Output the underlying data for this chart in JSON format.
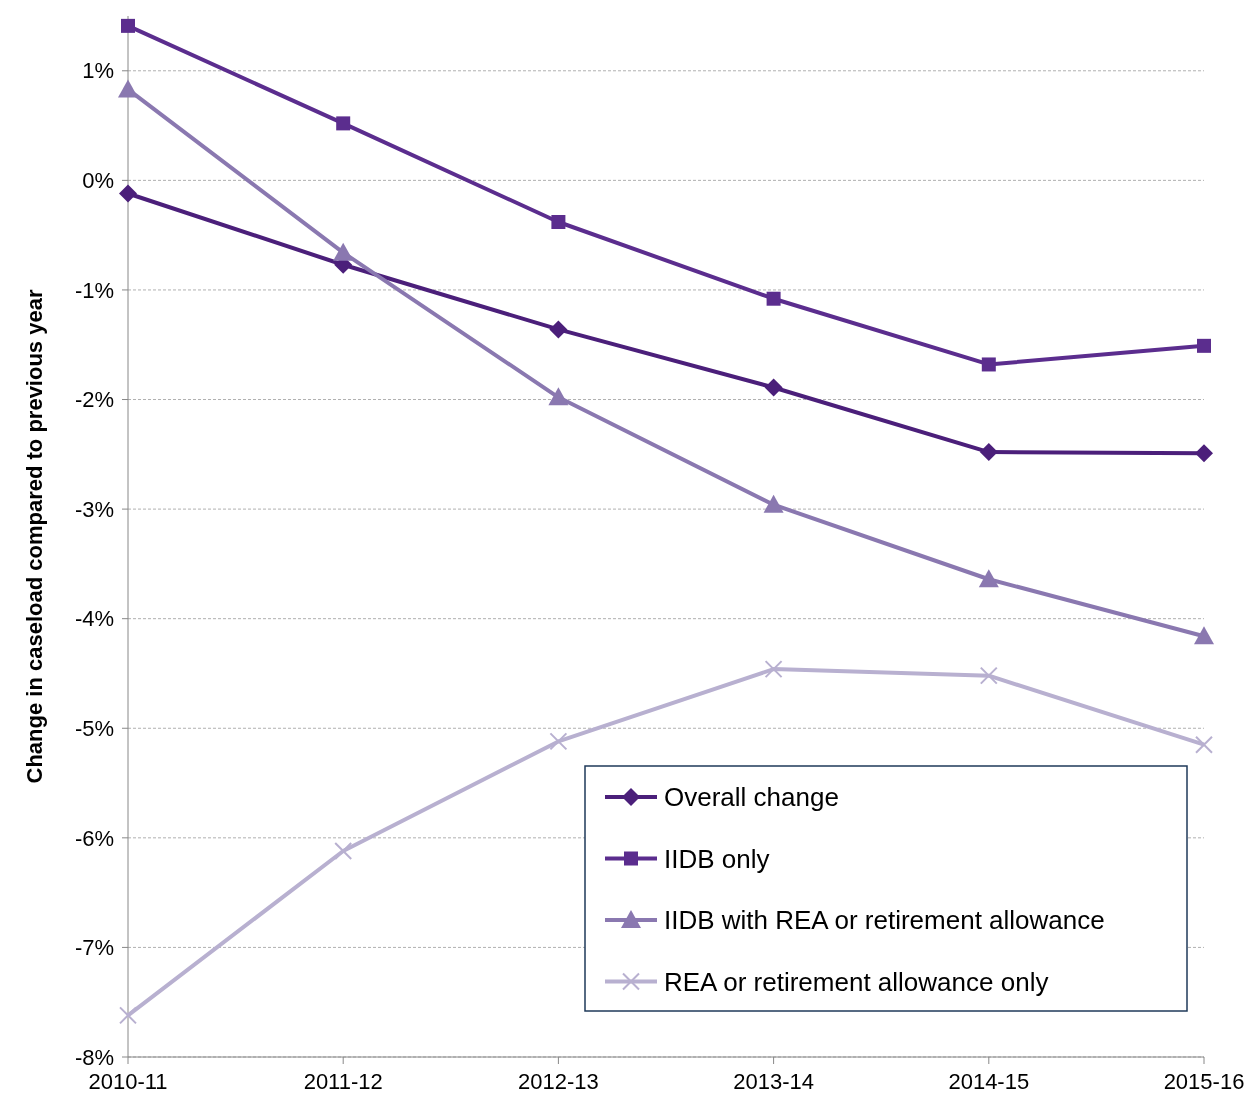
{
  "chart_data": {
    "type": "line",
    "ylabel": "Change in caseload compared to previous year",
    "categories": [
      "2010-11",
      "2011-12",
      "2012-13",
      "2013-14",
      "2014-15",
      "2015-16"
    ],
    "series": [
      {
        "name": "Overall change",
        "color": "#4b1f7a",
        "marker": "diamond",
        "values": [
          -0.12,
          -0.77,
          -1.36,
          -1.89,
          -2.48,
          -2.49
        ]
      },
      {
        "name": "IIDB only",
        "color": "#5b2d8e",
        "marker": "square",
        "values": [
          1.41,
          0.52,
          -0.38,
          -1.08,
          -1.68,
          -1.51
        ]
      },
      {
        "name": "IIDB with REA or retirement allowance",
        "color": "#8a78b0",
        "marker": "triangle",
        "values": [
          0.83,
          -0.66,
          -1.98,
          -2.96,
          -3.64,
          -4.16
        ]
      },
      {
        "name": "REA or retirement allowance only",
        "color": "#b8b0d0",
        "marker": "cross",
        "values": [
          -7.62,
          -6.12,
          -5.12,
          -4.46,
          -4.52,
          -5.15
        ]
      }
    ],
    "ylim": [
      -8,
      1.5
    ],
    "yticks": [
      {
        "value": -8,
        "label": "-8%"
      },
      {
        "value": -7,
        "label": "-7%"
      },
      {
        "value": -6,
        "label": "-6%"
      },
      {
        "value": -5,
        "label": "-5%"
      },
      {
        "value": -4,
        "label": "-4%"
      },
      {
        "value": -3,
        "label": "-3%"
      },
      {
        "value": -2,
        "label": "-2%"
      },
      {
        "value": -1,
        "label": "-1%"
      },
      {
        "value": 0,
        "label": "0%"
      },
      {
        "value": 1,
        "label": "1%"
      }
    ],
    "grid": "y",
    "legend": "bottom right",
    "line_style": "solid"
  }
}
